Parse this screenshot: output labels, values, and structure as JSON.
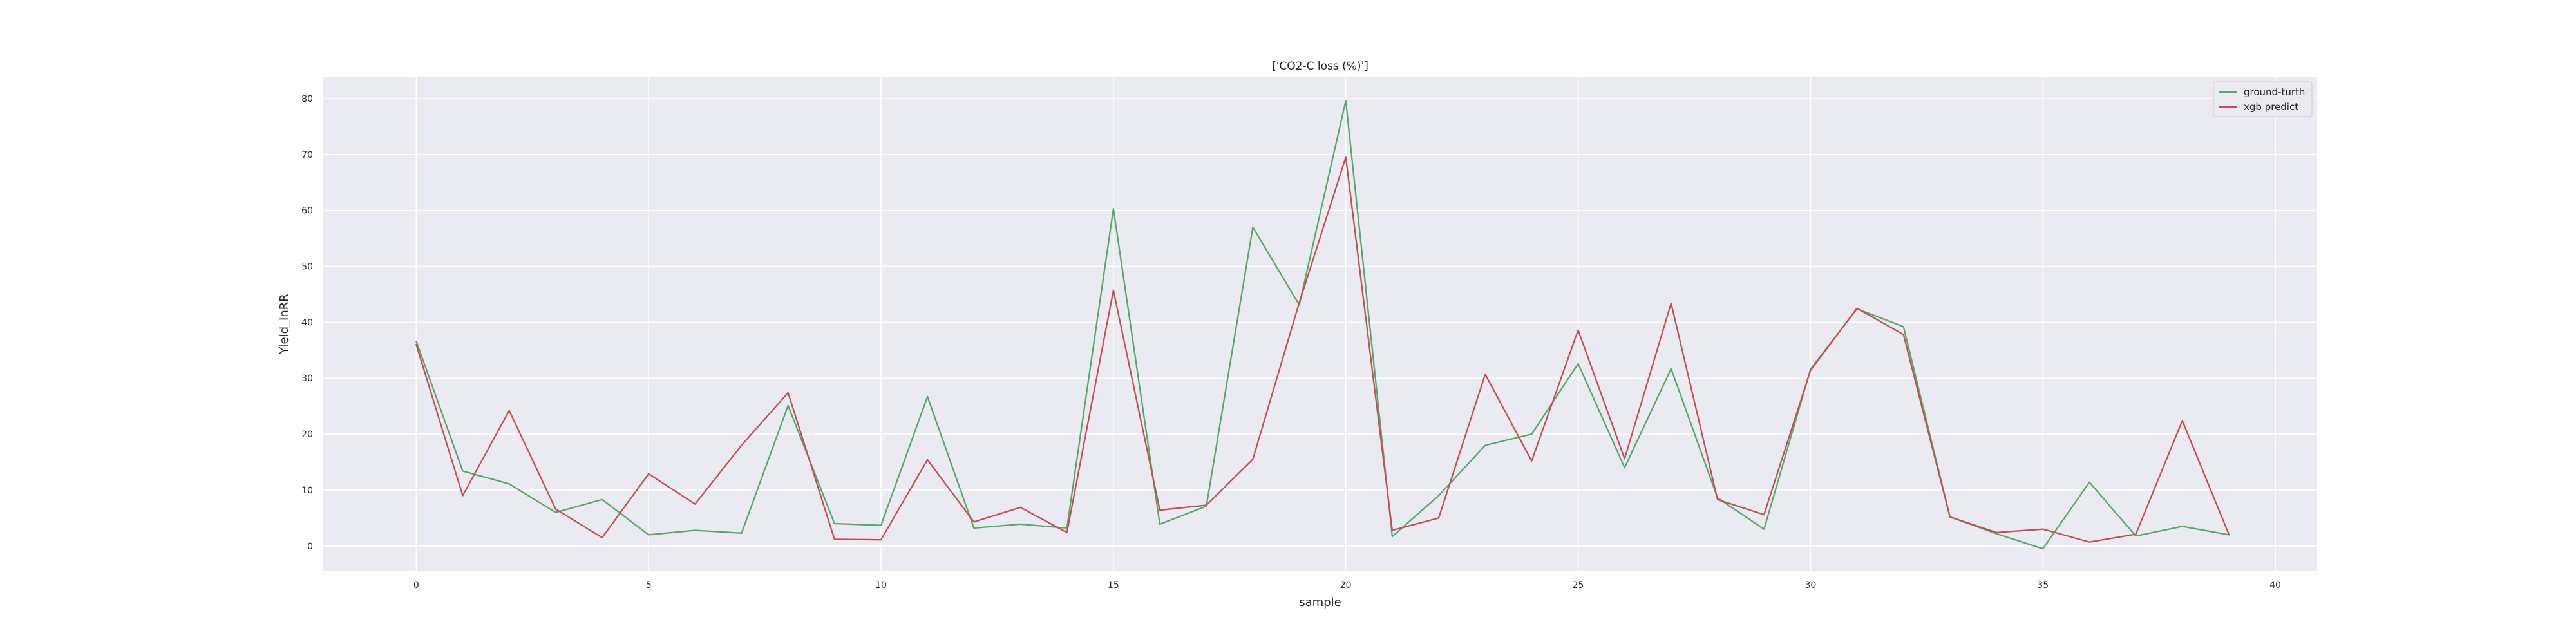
{
  "chart_data": {
    "type": "line",
    "title": "['CO2-C loss (%)']",
    "xlabel": "sample",
    "ylabel": "Yield_InRR",
    "xlim": [
      -2,
      40.9
    ],
    "ylim": [
      -4.4,
      83.8
    ],
    "x_ticks": [
      "0",
      "5",
      "10",
      "15",
      "20",
      "25",
      "30",
      "35",
      "40"
    ],
    "y_ticks": [
      "0",
      "10",
      "20",
      "30",
      "40",
      "50",
      "60",
      "70",
      "80"
    ],
    "grid": true,
    "legend_position": "top-right",
    "x": [
      0,
      1,
      2,
      3,
      4,
      5,
      6,
      7,
      8,
      9,
      10,
      11,
      12,
      13,
      14,
      15,
      16,
      17,
      18,
      19,
      20,
      21,
      22,
      23,
      24,
      25,
      26,
      27,
      28,
      29,
      30,
      31,
      32,
      33,
      34,
      35,
      36,
      37,
      38,
      39
    ],
    "series": [
      {
        "name": "ground-turth",
        "color": "#55A868",
        "values": [
          36.6,
          13.4,
          11.1,
          6.0,
          8.3,
          2.0,
          2.8,
          2.3,
          25.1,
          4.0,
          3.7,
          26.7,
          3.2,
          3.9,
          3.2,
          60.3,
          3.9,
          7.1,
          57.0,
          43.1,
          79.6,
          1.7,
          9.0,
          18.0,
          20.0,
          32.6,
          14.0,
          31.7,
          8.6,
          3.0,
          31.6,
          42.4,
          39.2,
          5.2,
          2.2,
          -0.5,
          11.4,
          1.8,
          3.5,
          2.0
        ]
      },
      {
        "name": "xgb predict",
        "color": "#C44E52",
        "values": [
          36.0,
          9.0,
          24.2,
          6.6,
          1.5,
          12.9,
          7.5,
          18.0,
          27.4,
          1.2,
          1.1,
          15.4,
          4.3,
          6.9,
          2.4,
          45.7,
          6.4,
          7.3,
          15.5,
          43.5,
          69.5,
          2.8,
          5.0,
          30.7,
          15.2,
          38.6,
          15.6,
          43.4,
          8.3,
          5.6,
          31.4,
          42.5,
          37.8,
          5.2,
          2.4,
          3.0,
          0.7,
          2.1,
          22.4,
          2.1
        ]
      }
    ]
  }
}
